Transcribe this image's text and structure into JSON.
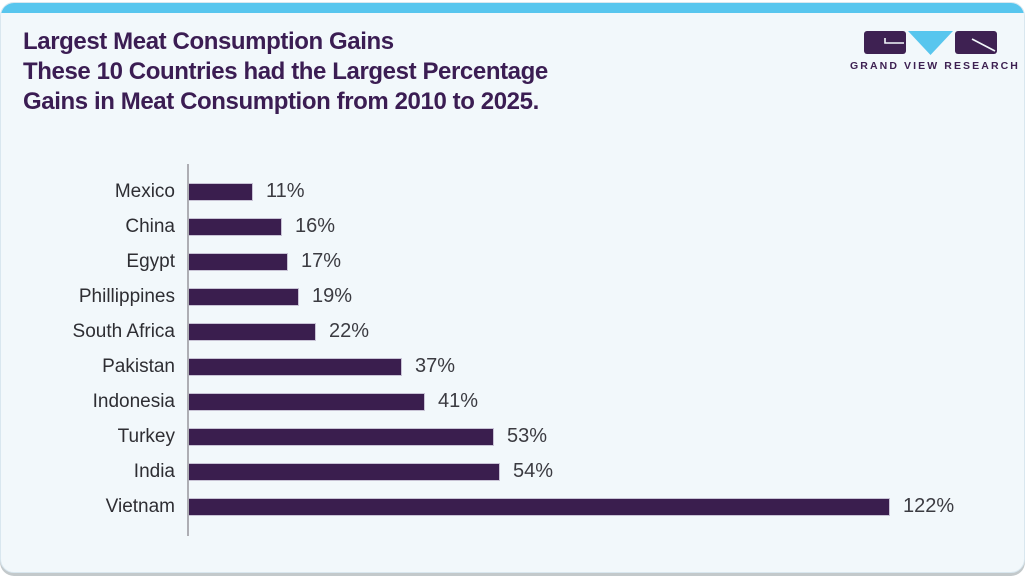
{
  "header": {
    "title_line1": "Largest Meat Consumption Gains",
    "title_line2": "These 10 Countries had the Largest Percentage",
    "title_line3": "Gains in Meat Consumption from 2010 to 2025."
  },
  "logo": {
    "text": "GRAND VIEW RESEARCH"
  },
  "colors": {
    "accent_blue": "#58c6ee",
    "title_purple": "#3b1d53",
    "bar_purple": "#3a1e4e",
    "logo_purple": "#3e2152",
    "axis_gray": "#aeaeb4",
    "card_background": "#f2f8fb"
  },
  "chart_data": {
    "type": "bar",
    "orientation": "horizontal",
    "title": "Largest Meat Consumption Gains",
    "subtitle": "These 10 Countries had the Largest Percentage Gains in Meat Consumption from 2010 to 2025.",
    "categories": [
      "Mexico",
      "China",
      "Egypt",
      "Phillippines",
      "South Africa",
      "Pakistan",
      "Indonesia",
      "Turkey",
      "India",
      "Vietnam"
    ],
    "values": [
      11,
      16,
      17,
      19,
      22,
      37,
      41,
      53,
      54,
      122
    ],
    "value_labels": [
      "11%",
      "16%",
      "17%",
      "19%",
      "22%",
      "37%",
      "41%",
      "53%",
      "54%",
      "122%"
    ],
    "unit": "%",
    "xlim": [
      0,
      130
    ],
    "grid": false,
    "legend": false,
    "bar_color": "#3a1e4e"
  }
}
